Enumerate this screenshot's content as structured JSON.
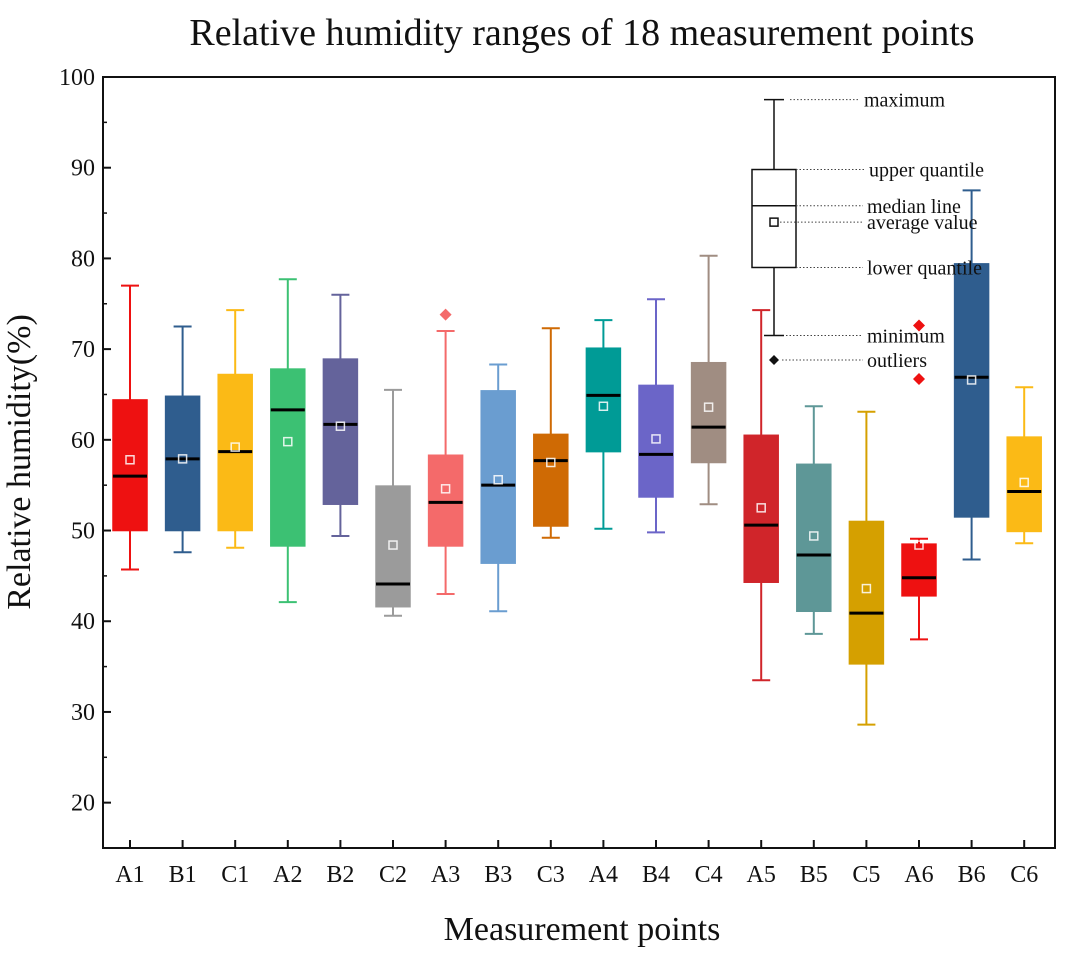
{
  "chart_data": {
    "type": "box",
    "title": "Relative humidity ranges of 18 measurement points",
    "xlabel": "Measurement points",
    "ylabel": "Relative humidity(%)",
    "ylim": [
      15,
      100
    ],
    "yticks": [
      20,
      30,
      40,
      50,
      60,
      70,
      80,
      90,
      100
    ],
    "grid": false,
    "categories": [
      "A1",
      "B1",
      "C1",
      "A2",
      "B2",
      "C2",
      "A3",
      "B3",
      "C3",
      "A4",
      "B4",
      "C4",
      "A5",
      "B5",
      "C5",
      "A6",
      "B6",
      "C6"
    ],
    "boxes": [
      {
        "label": "A1",
        "min": 45.7,
        "q1": 50.0,
        "median": 56.0,
        "q3": 64.4,
        "max": 77.0,
        "mean": 57.8,
        "outliers": [],
        "color": "#EE1111"
      },
      {
        "label": "B1",
        "min": 47.6,
        "q1": 50.0,
        "median": 57.9,
        "q3": 64.8,
        "max": 72.5,
        "mean": 57.9,
        "outliers": [],
        "color": "#2F5D8E"
      },
      {
        "label": "C1",
        "min": 48.1,
        "q1": 50.0,
        "median": 58.7,
        "q3": 67.2,
        "max": 74.3,
        "mean": 59.2,
        "outliers": [],
        "color": "#FBBA16"
      },
      {
        "label": "A2",
        "min": 42.1,
        "q1": 48.3,
        "median": 63.3,
        "q3": 67.8,
        "max": 77.7,
        "mean": 59.8,
        "outliers": [],
        "color": "#3CC173"
      },
      {
        "label": "B2",
        "min": 49.4,
        "q1": 52.9,
        "median": 61.7,
        "q3": 68.9,
        "max": 76.0,
        "mean": 61.5,
        "outliers": [],
        "color": "#64639B"
      },
      {
        "label": "C2",
        "min": 40.6,
        "q1": 41.6,
        "median": 44.1,
        "q3": 54.9,
        "max": 65.5,
        "mean": 48.4,
        "outliers": [],
        "color": "#9B9B9B"
      },
      {
        "label": "A3",
        "min": 43.0,
        "q1": 48.3,
        "median": 53.1,
        "q3": 58.3,
        "max": 72.0,
        "mean": 54.6,
        "outliers": [
          73.8
        ],
        "color": "#F46A6A"
      },
      {
        "label": "B3",
        "min": 41.1,
        "q1": 46.4,
        "median": 55.0,
        "q3": 65.4,
        "max": 68.3,
        "mean": 55.6,
        "outliers": [],
        "color": "#6A9DD0"
      },
      {
        "label": "C3",
        "min": 49.2,
        "q1": 50.5,
        "median": 57.7,
        "q3": 60.6,
        "max": 72.3,
        "mean": 57.5,
        "outliers": [],
        "color": "#CF6A04"
      },
      {
        "label": "A4",
        "min": 50.2,
        "q1": 58.7,
        "median": 64.9,
        "q3": 70.1,
        "max": 73.2,
        "mean": 63.7,
        "outliers": [],
        "color": "#009B96"
      },
      {
        "label": "B4",
        "min": 49.8,
        "q1": 53.7,
        "median": 58.4,
        "q3": 66.0,
        "max": 75.5,
        "mean": 60.1,
        "outliers": [],
        "color": "#6B65C8"
      },
      {
        "label": "C4",
        "min": 52.9,
        "q1": 57.5,
        "median": 61.4,
        "q3": 68.5,
        "max": 80.3,
        "mean": 63.6,
        "outliers": [],
        "color": "#A08D82"
      },
      {
        "label": "A5",
        "min": 33.5,
        "q1": 44.3,
        "median": 50.6,
        "q3": 60.5,
        "max": 74.3,
        "mean": 52.5,
        "outliers": [],
        "color": "#D0252A"
      },
      {
        "label": "B5",
        "min": 38.6,
        "q1": 41.1,
        "median": 47.3,
        "q3": 57.3,
        "max": 63.7,
        "mean": 49.4,
        "outliers": [],
        "color": "#5E9797"
      },
      {
        "label": "C5",
        "min": 28.6,
        "q1": 35.3,
        "median": 40.9,
        "q3": 51.0,
        "max": 63.1,
        "mean": 43.6,
        "outliers": [],
        "color": "#D5A000"
      },
      {
        "label": "A6",
        "min": 38.0,
        "q1": 42.8,
        "median": 44.8,
        "q3": 48.5,
        "max": 49.1,
        "mean": 48.4,
        "outliers": [
          72.6,
          66.7
        ],
        "color": "#EE1111"
      },
      {
        "label": "B6",
        "min": 46.8,
        "q1": 51.5,
        "median": 66.9,
        "q3": 79.4,
        "max": 87.5,
        "mean": 66.6,
        "outliers": [],
        "color": "#2F5D8E"
      },
      {
        "label": "C6",
        "min": 48.6,
        "q1": 49.9,
        "median": 54.3,
        "q3": 60.3,
        "max": 65.8,
        "mean": 55.3,
        "outliers": [],
        "color": "#FBBA16"
      }
    ],
    "legend": {
      "position": "top-right",
      "labels": {
        "max": "maximum",
        "q3": "upper quantile",
        "median": "median line",
        "mean": "average value",
        "q1": "lower quantile",
        "min": "minimum",
        "outlier": "outliers"
      },
      "example": {
        "min": 71.5,
        "q1": 79.0,
        "median": 85.8,
        "q3": 89.8,
        "max": 97.5,
        "mean": 84.0,
        "outlier": 68.8
      }
    }
  }
}
